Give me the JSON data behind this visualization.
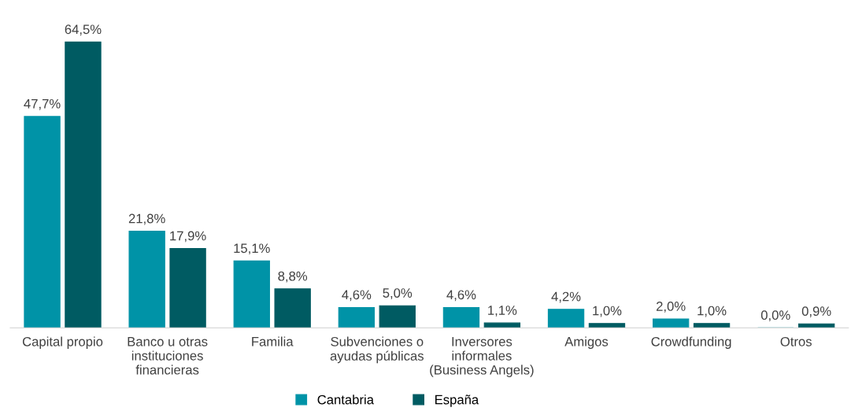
{
  "chart_data": {
    "type": "bar",
    "categories": [
      "Capital propio",
      "Banco u otras\ninstituciones\nfinancieras",
      "Familia",
      "Subvenciones o\nayudas públicas",
      "Inversores\ninformales\n(Business Angels)",
      "Amigos",
      "Crowdfunding",
      "Otros"
    ],
    "series": [
      {
        "name": "Cantabria",
        "color": "#0093a7",
        "values": [
          47.7,
          21.8,
          15.1,
          4.6,
          4.6,
          4.2,
          2.0,
          0.0
        ],
        "value_labels": [
          "47,7%",
          "21,8%",
          "15,1%",
          "4,6%",
          "4,6%",
          "4,2%",
          "2,0%",
          "0,0%"
        ]
      },
      {
        "name": "España",
        "color": "#005b62",
        "values": [
          64.5,
          17.9,
          8.8,
          5.0,
          1.1,
          1.0,
          1.0,
          0.9
        ],
        "value_labels": [
          "64,5%",
          "17,9%",
          "8,8%",
          "5,0%",
          "1,1%",
          "1,0%",
          "1,0%",
          "0,9%"
        ]
      }
    ],
    "legend": "bottom",
    "grid": false,
    "tick_labels": "x"
  }
}
